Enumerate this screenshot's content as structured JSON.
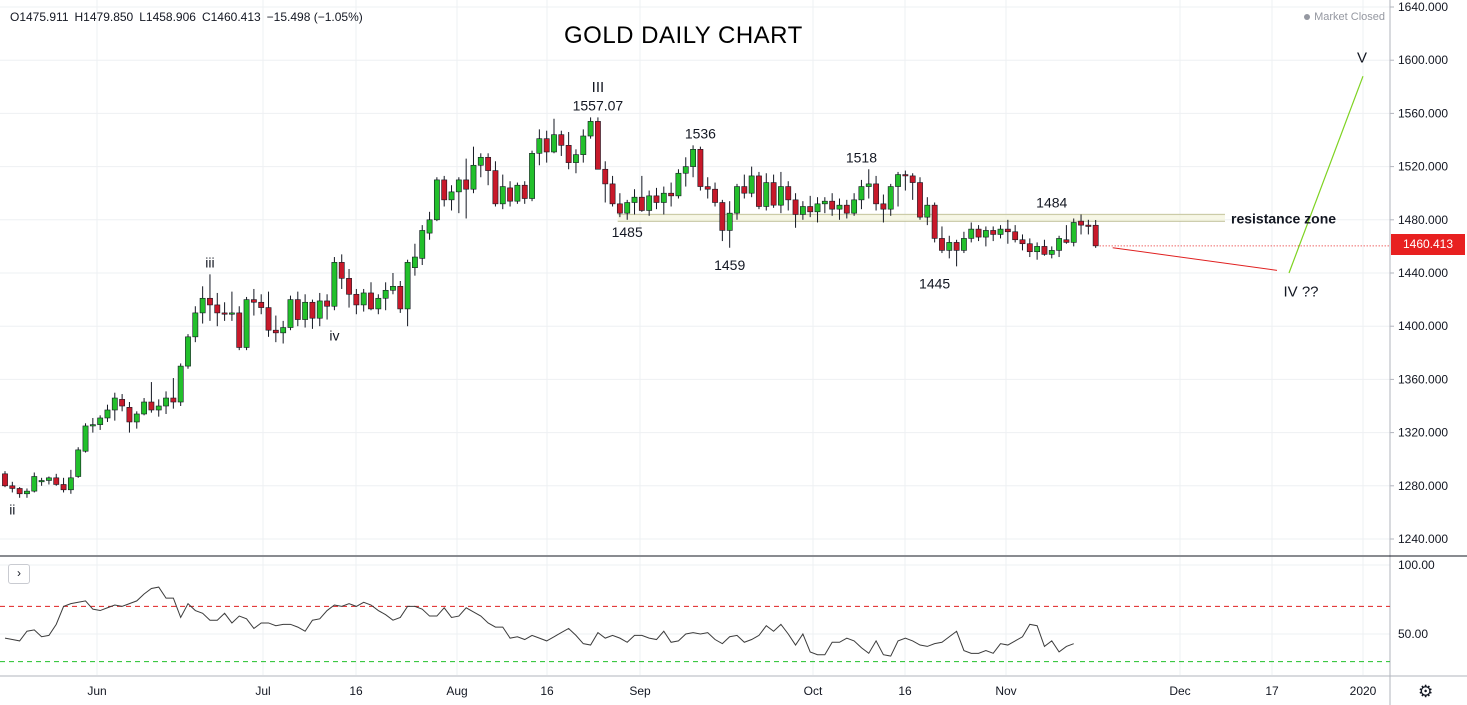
{
  "ohlc": {
    "open": "O1475.911",
    "high": "H1479.850",
    "low": "L1458.906",
    "close": "C1460.413",
    "change": "−15.498 (−1.05%)"
  },
  "status": "Market Closed",
  "title": "GOLD DAILY CHART",
  "last_price": "1460.413",
  "expand_icon": "›",
  "settings_icon": "⚙",
  "colors": {
    "up": "#22c02b",
    "down": "#c8192a",
    "badge": "#e82020",
    "wave_up": "#7ed321",
    "wave_down": "#e02020",
    "rsi_upper": "#e02020",
    "rsi_lower": "#22c02b"
  },
  "chart_data": [
    {
      "type": "candlestick",
      "title": "GOLD DAILY CHART",
      "y_axis": {
        "ticks": [
          1240,
          1280,
          1320,
          1360,
          1400,
          1440,
          1480,
          1520,
          1560,
          1600,
          1640
        ],
        "tick_labels": [
          "1240.000",
          "1280.000",
          "1320.000",
          "1360.000",
          "1400.000",
          "1440.000",
          "1480.000",
          "1520.000",
          "1560.000",
          "1600.000",
          "1640.000"
        ],
        "range": [
          1230,
          1645
        ]
      },
      "x_axis": {
        "tick_labels": [
          "Jun",
          "Jul",
          "16",
          "Aug",
          "16",
          "Sep",
          "Oct",
          "16",
          "Nov",
          "Dec",
          "17",
          "2020"
        ]
      },
      "grid": true,
      "candles": [
        [
          1289,
          1291,
          1279,
          1280
        ],
        [
          1280,
          1283,
          1275,
          1278
        ],
        [
          1278,
          1279,
          1271,
          1274
        ],
        [
          1274,
          1278,
          1271,
          1276
        ],
        [
          1276,
          1290,
          1275,
          1287
        ],
        [
          1283,
          1286,
          1280,
          1284
        ],
        [
          1284,
          1287,
          1281,
          1286
        ],
        [
          1286,
          1289,
          1280,
          1281
        ],
        [
          1281,
          1286,
          1275,
          1277
        ],
        [
          1277,
          1292,
          1274,
          1286
        ],
        [
          1287,
          1309,
          1286,
          1307
        ],
        [
          1306,
          1327,
          1305,
          1325
        ],
        [
          1325,
          1331,
          1320,
          1326
        ],
        [
          1326,
          1333,
          1322,
          1331
        ],
        [
          1331,
          1341,
          1328,
          1337
        ],
        [
          1337,
          1350,
          1329,
          1346
        ],
        [
          1345,
          1349,
          1336,
          1340
        ],
        [
          1339,
          1343,
          1320,
          1328
        ],
        [
          1328,
          1336,
          1323,
          1334
        ],
        [
          1334,
          1346,
          1333,
          1343
        ],
        [
          1343,
          1358,
          1335,
          1337
        ],
        [
          1337,
          1345,
          1332,
          1340
        ],
        [
          1340,
          1351,
          1334,
          1346
        ],
        [
          1346,
          1361,
          1338,
          1343
        ],
        [
          1343,
          1372,
          1340,
          1370
        ],
        [
          1370,
          1394,
          1368,
          1392
        ],
        [
          1392,
          1415,
          1388,
          1410
        ],
        [
          1410,
          1430,
          1402,
          1421
        ],
        [
          1421,
          1439,
          1404,
          1416
        ],
        [
          1416,
          1425,
          1400,
          1410
        ],
        [
          1410,
          1418,
          1404,
          1409
        ],
        [
          1409,
          1426,
          1404,
          1410
        ],
        [
          1410,
          1415,
          1382,
          1384
        ],
        [
          1384,
          1422,
          1382,
          1420
        ],
        [
          1420,
          1428,
          1408,
          1418
        ],
        [
          1418,
          1424,
          1409,
          1414
        ],
        [
          1414,
          1426,
          1392,
          1397
        ],
        [
          1397,
          1408,
          1388,
          1395
        ],
        [
          1395,
          1404,
          1387,
          1399
        ],
        [
          1399,
          1423,
          1397,
          1420
        ],
        [
          1420,
          1426,
          1400,
          1405
        ],
        [
          1405,
          1424,
          1399,
          1418
        ],
        [
          1418,
          1420,
          1398,
          1406
        ],
        [
          1406,
          1425,
          1400,
          1419
        ],
        [
          1419,
          1424,
          1405,
          1415
        ],
        [
          1415,
          1452,
          1412,
          1448
        ],
        [
          1448,
          1454,
          1428,
          1436
        ],
        [
          1436,
          1443,
          1414,
          1424
        ],
        [
          1424,
          1428,
          1409,
          1416
        ],
        [
          1416,
          1428,
          1411,
          1425
        ],
        [
          1425,
          1433,
          1412,
          1413
        ],
        [
          1413,
          1424,
          1409,
          1421
        ],
        [
          1421,
          1433,
          1412,
          1427
        ],
        [
          1427,
          1440,
          1424,
          1430
        ],
        [
          1430,
          1434,
          1410,
          1413
        ],
        [
          1413,
          1450,
          1400,
          1448
        ],
        [
          1444,
          1462,
          1438,
          1452
        ],
        [
          1451,
          1476,
          1446,
          1472
        ],
        [
          1470,
          1486,
          1465,
          1480
        ],
        [
          1480,
          1512,
          1479,
          1510
        ],
        [
          1510,
          1513,
          1490,
          1495
        ],
        [
          1495,
          1506,
          1487,
          1501
        ],
        [
          1501,
          1512,
          1485,
          1510
        ],
        [
          1510,
          1526,
          1481,
          1503
        ],
        [
          1503,
          1535,
          1500,
          1521
        ],
        [
          1521,
          1530,
          1512,
          1527
        ],
        [
          1527,
          1530,
          1506,
          1517
        ],
        [
          1517,
          1524,
          1490,
          1492
        ],
        [
          1492,
          1514,
          1488,
          1505
        ],
        [
          1504,
          1509,
          1490,
          1494
        ],
        [
          1494,
          1508,
          1492,
          1506
        ],
        [
          1506,
          1509,
          1492,
          1496
        ],
        [
          1496,
          1532,
          1494,
          1530
        ],
        [
          1530,
          1548,
          1521,
          1541
        ],
        [
          1541,
          1547,
          1523,
          1531
        ],
        [
          1531,
          1556,
          1530,
          1544
        ],
        [
          1544,
          1547,
          1528,
          1536
        ],
        [
          1536,
          1546,
          1518,
          1523
        ],
        [
          1523,
          1533,
          1515,
          1529
        ],
        [
          1529,
          1548,
          1523,
          1543
        ],
        [
          1543,
          1557,
          1541,
          1554
        ],
        [
          1554,
          1557,
          1518,
          1518
        ],
        [
          1518,
          1524,
          1493,
          1507
        ],
        [
          1507,
          1513,
          1490,
          1492
        ],
        [
          1492,
          1500,
          1482,
          1485
        ],
        [
          1485,
          1495,
          1480,
          1493
        ],
        [
          1493,
          1503,
          1484,
          1497
        ],
        [
          1497,
          1513,
          1486,
          1487
        ],
        [
          1487,
          1502,
          1483,
          1498
        ],
        [
          1498,
          1504,
          1488,
          1493
        ],
        [
          1493,
          1505,
          1484,
          1500
        ],
        [
          1500,
          1508,
          1490,
          1498
        ],
        [
          1498,
          1518,
          1496,
          1515
        ],
        [
          1515,
          1527,
          1505,
          1520
        ],
        [
          1520,
          1536,
          1512,
          1533
        ],
        [
          1533,
          1535,
          1502,
          1505
        ],
        [
          1505,
          1512,
          1496,
          1503
        ],
        [
          1503,
          1508,
          1490,
          1493
        ],
        [
          1493,
          1495,
          1464,
          1472
        ],
        [
          1472,
          1494,
          1459,
          1485
        ],
        [
          1485,
          1507,
          1480,
          1505
        ],
        [
          1505,
          1514,
          1496,
          1500
        ],
        [
          1500,
          1520,
          1497,
          1513
        ],
        [
          1513,
          1516,
          1488,
          1490
        ],
        [
          1490,
          1515,
          1487,
          1508
        ],
        [
          1508,
          1514,
          1489,
          1491
        ],
        [
          1491,
          1516,
          1485,
          1505
        ],
        [
          1505,
          1509,
          1487,
          1495
        ],
        [
          1495,
          1500,
          1474,
          1484
        ],
        [
          1484,
          1494,
          1480,
          1490
        ],
        [
          1490,
          1498,
          1482,
          1486
        ],
        [
          1486,
          1497,
          1478,
          1492
        ],
        [
          1492,
          1497,
          1485,
          1494
        ],
        [
          1494,
          1500,
          1483,
          1488
        ],
        [
          1488,
          1496,
          1480,
          1491
        ],
        [
          1491,
          1495,
          1481,
          1485
        ],
        [
          1485,
          1500,
          1483,
          1495
        ],
        [
          1495,
          1510,
          1488,
          1505
        ],
        [
          1505,
          1518,
          1496,
          1507
        ],
        [
          1507,
          1513,
          1487,
          1492
        ],
        [
          1492,
          1499,
          1478,
          1488
        ],
        [
          1488,
          1507,
          1483,
          1505
        ],
        [
          1505,
          1516,
          1490,
          1514
        ],
        [
          1514,
          1517,
          1502,
          1513
        ],
        [
          1513,
          1515,
          1495,
          1508
        ],
        [
          1508,
          1512,
          1480,
          1482
        ],
        [
          1482,
          1497,
          1476,
          1491
        ],
        [
          1491,
          1493,
          1463,
          1466
        ],
        [
          1466,
          1475,
          1455,
          1457
        ],
        [
          1457,
          1468,
          1451,
          1463
        ],
        [
          1463,
          1465,
          1445,
          1457
        ],
        [
          1457,
          1471,
          1455,
          1466
        ],
        [
          1466,
          1478,
          1463,
          1473
        ],
        [
          1473,
          1476,
          1464,
          1467
        ],
        [
          1467,
          1475,
          1460,
          1472
        ],
        [
          1472,
          1475,
          1464,
          1469
        ],
        [
          1469,
          1476,
          1466,
          1473
        ],
        [
          1473,
          1480,
          1462,
          1471
        ],
        [
          1471,
          1476,
          1463,
          1465
        ],
        [
          1465,
          1469,
          1457,
          1462
        ],
        [
          1462,
          1466,
          1452,
          1456
        ],
        [
          1456,
          1463,
          1450,
          1460
        ],
        [
          1460,
          1465,
          1453,
          1454
        ],
        [
          1454,
          1460,
          1451,
          1457
        ],
        [
          1457,
          1468,
          1452,
          1466
        ],
        [
          1465,
          1476,
          1462,
          1463
        ],
        [
          1463,
          1481,
          1460,
          1478
        ],
        [
          1479,
          1484,
          1469,
          1476
        ],
        [
          1476,
          1480,
          1469,
          1475
        ],
        [
          1475.9,
          1479.85,
          1458.9,
          1460.4
        ]
      ],
      "resistance_zone": [
        1479,
        1484
      ],
      "wave_projection": {
        "down_to": 1442,
        "up_to": 1601
      },
      "annotations": [
        {
          "text": "ii",
          "at_candle": 1,
          "price": 1262,
          "key": "ann_ii"
        },
        {
          "text": "iii",
          "at_candle": 28,
          "price": 1448,
          "key": "ann_iii"
        },
        {
          "text": "iv",
          "at_candle": 45,
          "price": 1393,
          "key": "ann_iv"
        },
        {
          "text": "III",
          "at_candle": 81,
          "price": 1580,
          "key": "ann_III"
        },
        {
          "text": "1557.07",
          "at_candle": 81,
          "price": 1566,
          "key": "ann_1557"
        },
        {
          "text": "1485",
          "at_candle": 85,
          "price": 1471,
          "key": "ann_1485"
        },
        {
          "text": "1536",
          "at_candle": 95,
          "price": 1545,
          "key": "ann_1536"
        },
        {
          "text": "1459",
          "at_candle": 99,
          "price": 1446,
          "key": "ann_1459"
        },
        {
          "text": "1518",
          "at_candle": 117,
          "price": 1527,
          "key": "ann_1518"
        },
        {
          "text": "1445",
          "at_candle": 127,
          "price": 1432,
          "key": "ann_1445"
        },
        {
          "text": "1484",
          "at_candle": 143,
          "price": 1493,
          "key": "ann_1484"
        },
        {
          "text": "resistance zone",
          "at_candle": 147,
          "price": 1481,
          "key": "ann_resistance",
          "bold": true
        },
        {
          "text": "IV ??",
          "at_candle": 152,
          "price": 1426,
          "key": "ann_IV"
        },
        {
          "text": "V",
          "at_candle": 157,
          "price": 1602,
          "key": "ann_V"
        }
      ]
    },
    {
      "type": "line",
      "indicator": "oscillator",
      "y_axis": {
        "ticks": [
          50,
          100
        ],
        "tick_labels": [
          "50.00",
          "100.00"
        ],
        "range": [
          20,
          105
        ]
      },
      "levels": [
        70,
        30
      ],
      "values": [
        47,
        46,
        45,
        52,
        53,
        48,
        49,
        57,
        70,
        72,
        73,
        74,
        68,
        67,
        69,
        71,
        70,
        72,
        74,
        79,
        83,
        84,
        76,
        76,
        62,
        72,
        67,
        65,
        60,
        60,
        65,
        58,
        63,
        61,
        54,
        58,
        58,
        56,
        57,
        57,
        55,
        52,
        60,
        61,
        67,
        71,
        70,
        72,
        70,
        73,
        71,
        67,
        64,
        60,
        62,
        70,
        70,
        68,
        63,
        63,
        69,
        62,
        63,
        69,
        66,
        63,
        58,
        55,
        55,
        47,
        48,
        46,
        49,
        47,
        45,
        48,
        51,
        54,
        49,
        43,
        42,
        51,
        47,
        49,
        47,
        44,
        49,
        49,
        47,
        46,
        52,
        44,
        45,
        50,
        51,
        50,
        51,
        46,
        43,
        48,
        49,
        44,
        46,
        49,
        56,
        52,
        57,
        50,
        42,
        50,
        37,
        35,
        35,
        44,
        44,
        47,
        45,
        40,
        36,
        45,
        35,
        34,
        45,
        47,
        45,
        42,
        41,
        43,
        44,
        48,
        52,
        38,
        36,
        36,
        38,
        36,
        43,
        42,
        45,
        48,
        57,
        56,
        41,
        45,
        37,
        41,
        43
      ]
    }
  ]
}
